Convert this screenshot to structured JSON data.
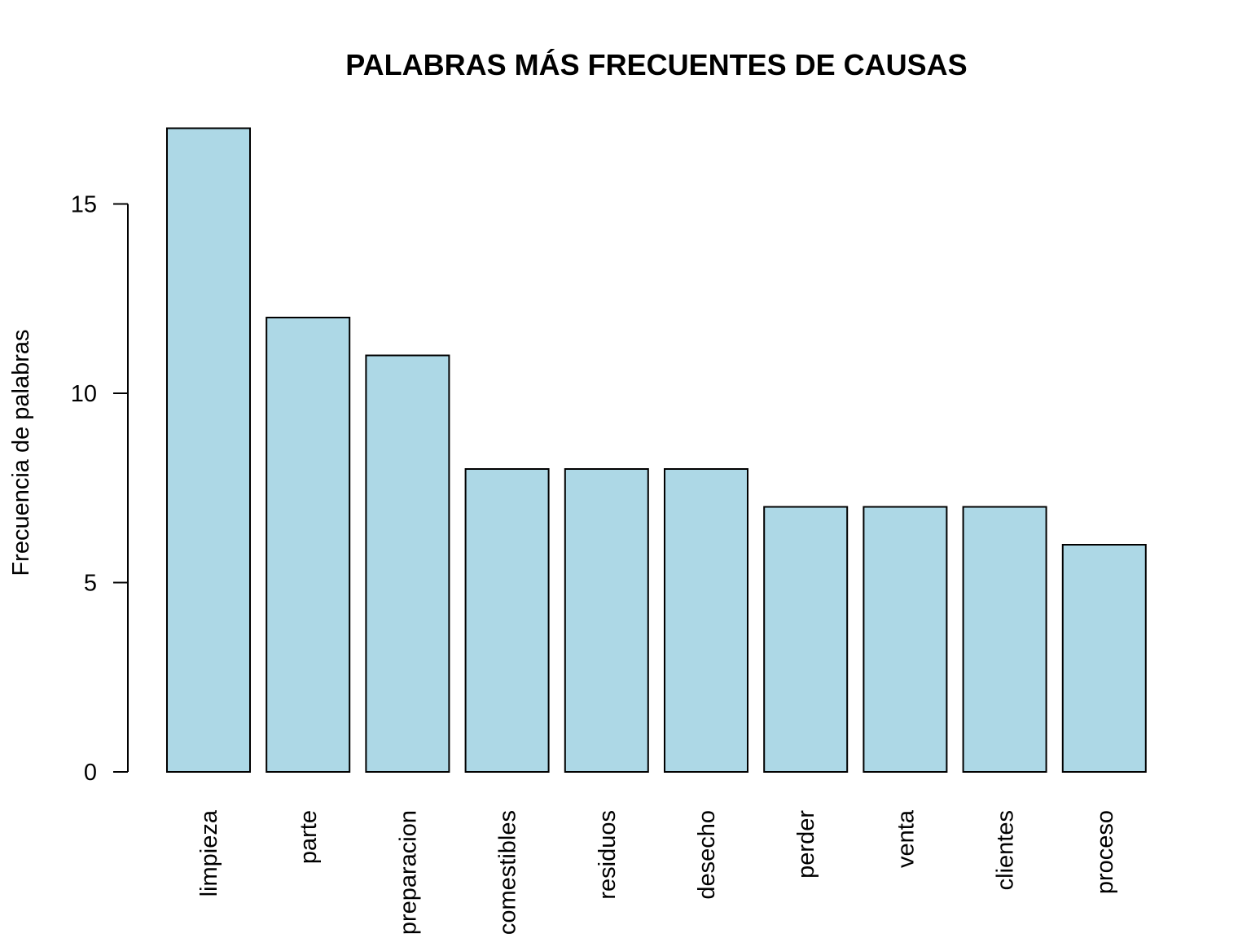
{
  "chart_data": {
    "type": "bar",
    "title": "PALABRAS MÁS FRECUENTES DE CAUSAS",
    "xlabel": "",
    "ylabel": "Frecuencia de palabras",
    "categories": [
      "limpieza",
      "parte",
      "preparacion",
      "comestibles",
      "residuos",
      "desecho",
      "perder",
      "venta",
      "clientes",
      "proceso"
    ],
    "values": [
      17,
      12,
      11,
      8,
      8,
      8,
      7,
      7,
      7,
      6
    ],
    "ylim": [
      0,
      17
    ],
    "yticks": [
      "0",
      "5",
      "10",
      "15"
    ],
    "grid": false,
    "legend": "none",
    "colors": {
      "bar_fill": "#ADD8E6",
      "bar_stroke": "#000000"
    }
  }
}
